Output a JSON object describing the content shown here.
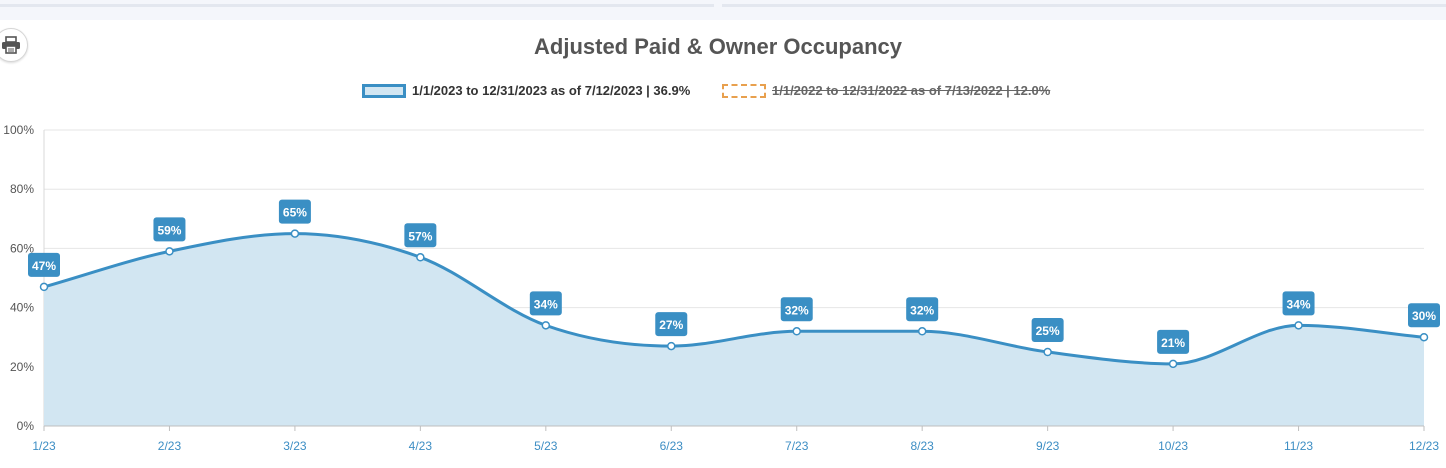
{
  "colors": {
    "series_line": "#3a8fc4",
    "series_fill": "#d2e6f2",
    "label_bg": "#3a8fc4",
    "hidden_series": "#e8a04e",
    "grid": "#e6e6e6",
    "x_tick": "#3d8ec4"
  },
  "icons": {
    "print": "printer-icon"
  },
  "chart_data": {
    "type": "area",
    "title": "Adjusted Paid & Owner Occupancy",
    "categories": [
      "1/23",
      "2/23",
      "3/23",
      "4/23",
      "5/23",
      "6/23",
      "7/23",
      "8/23",
      "9/23",
      "10/23",
      "11/23",
      "12/23"
    ],
    "series": [
      {
        "name": "1/1/2023 to 12/31/2023 as of 7/12/2023 | 36.9%",
        "values": [
          47,
          59,
          65,
          57,
          34,
          27,
          32,
          32,
          25,
          21,
          34,
          30
        ],
        "data_labels": [
          "47%",
          "59%",
          "65%",
          "57%",
          "34%",
          "27%",
          "32%",
          "32%",
          "25%",
          "21%",
          "34%",
          "30%"
        ],
        "visible": true
      },
      {
        "name": "1/1/2022 to 12/31/2022 as of 7/13/2022 | 12.0%",
        "visible": false
      }
    ],
    "y_ticks": [
      "0%",
      "20%",
      "40%",
      "60%",
      "80%",
      "100%"
    ],
    "ylim": [
      0,
      100
    ],
    "grid": true,
    "legend_position": "top-center"
  }
}
